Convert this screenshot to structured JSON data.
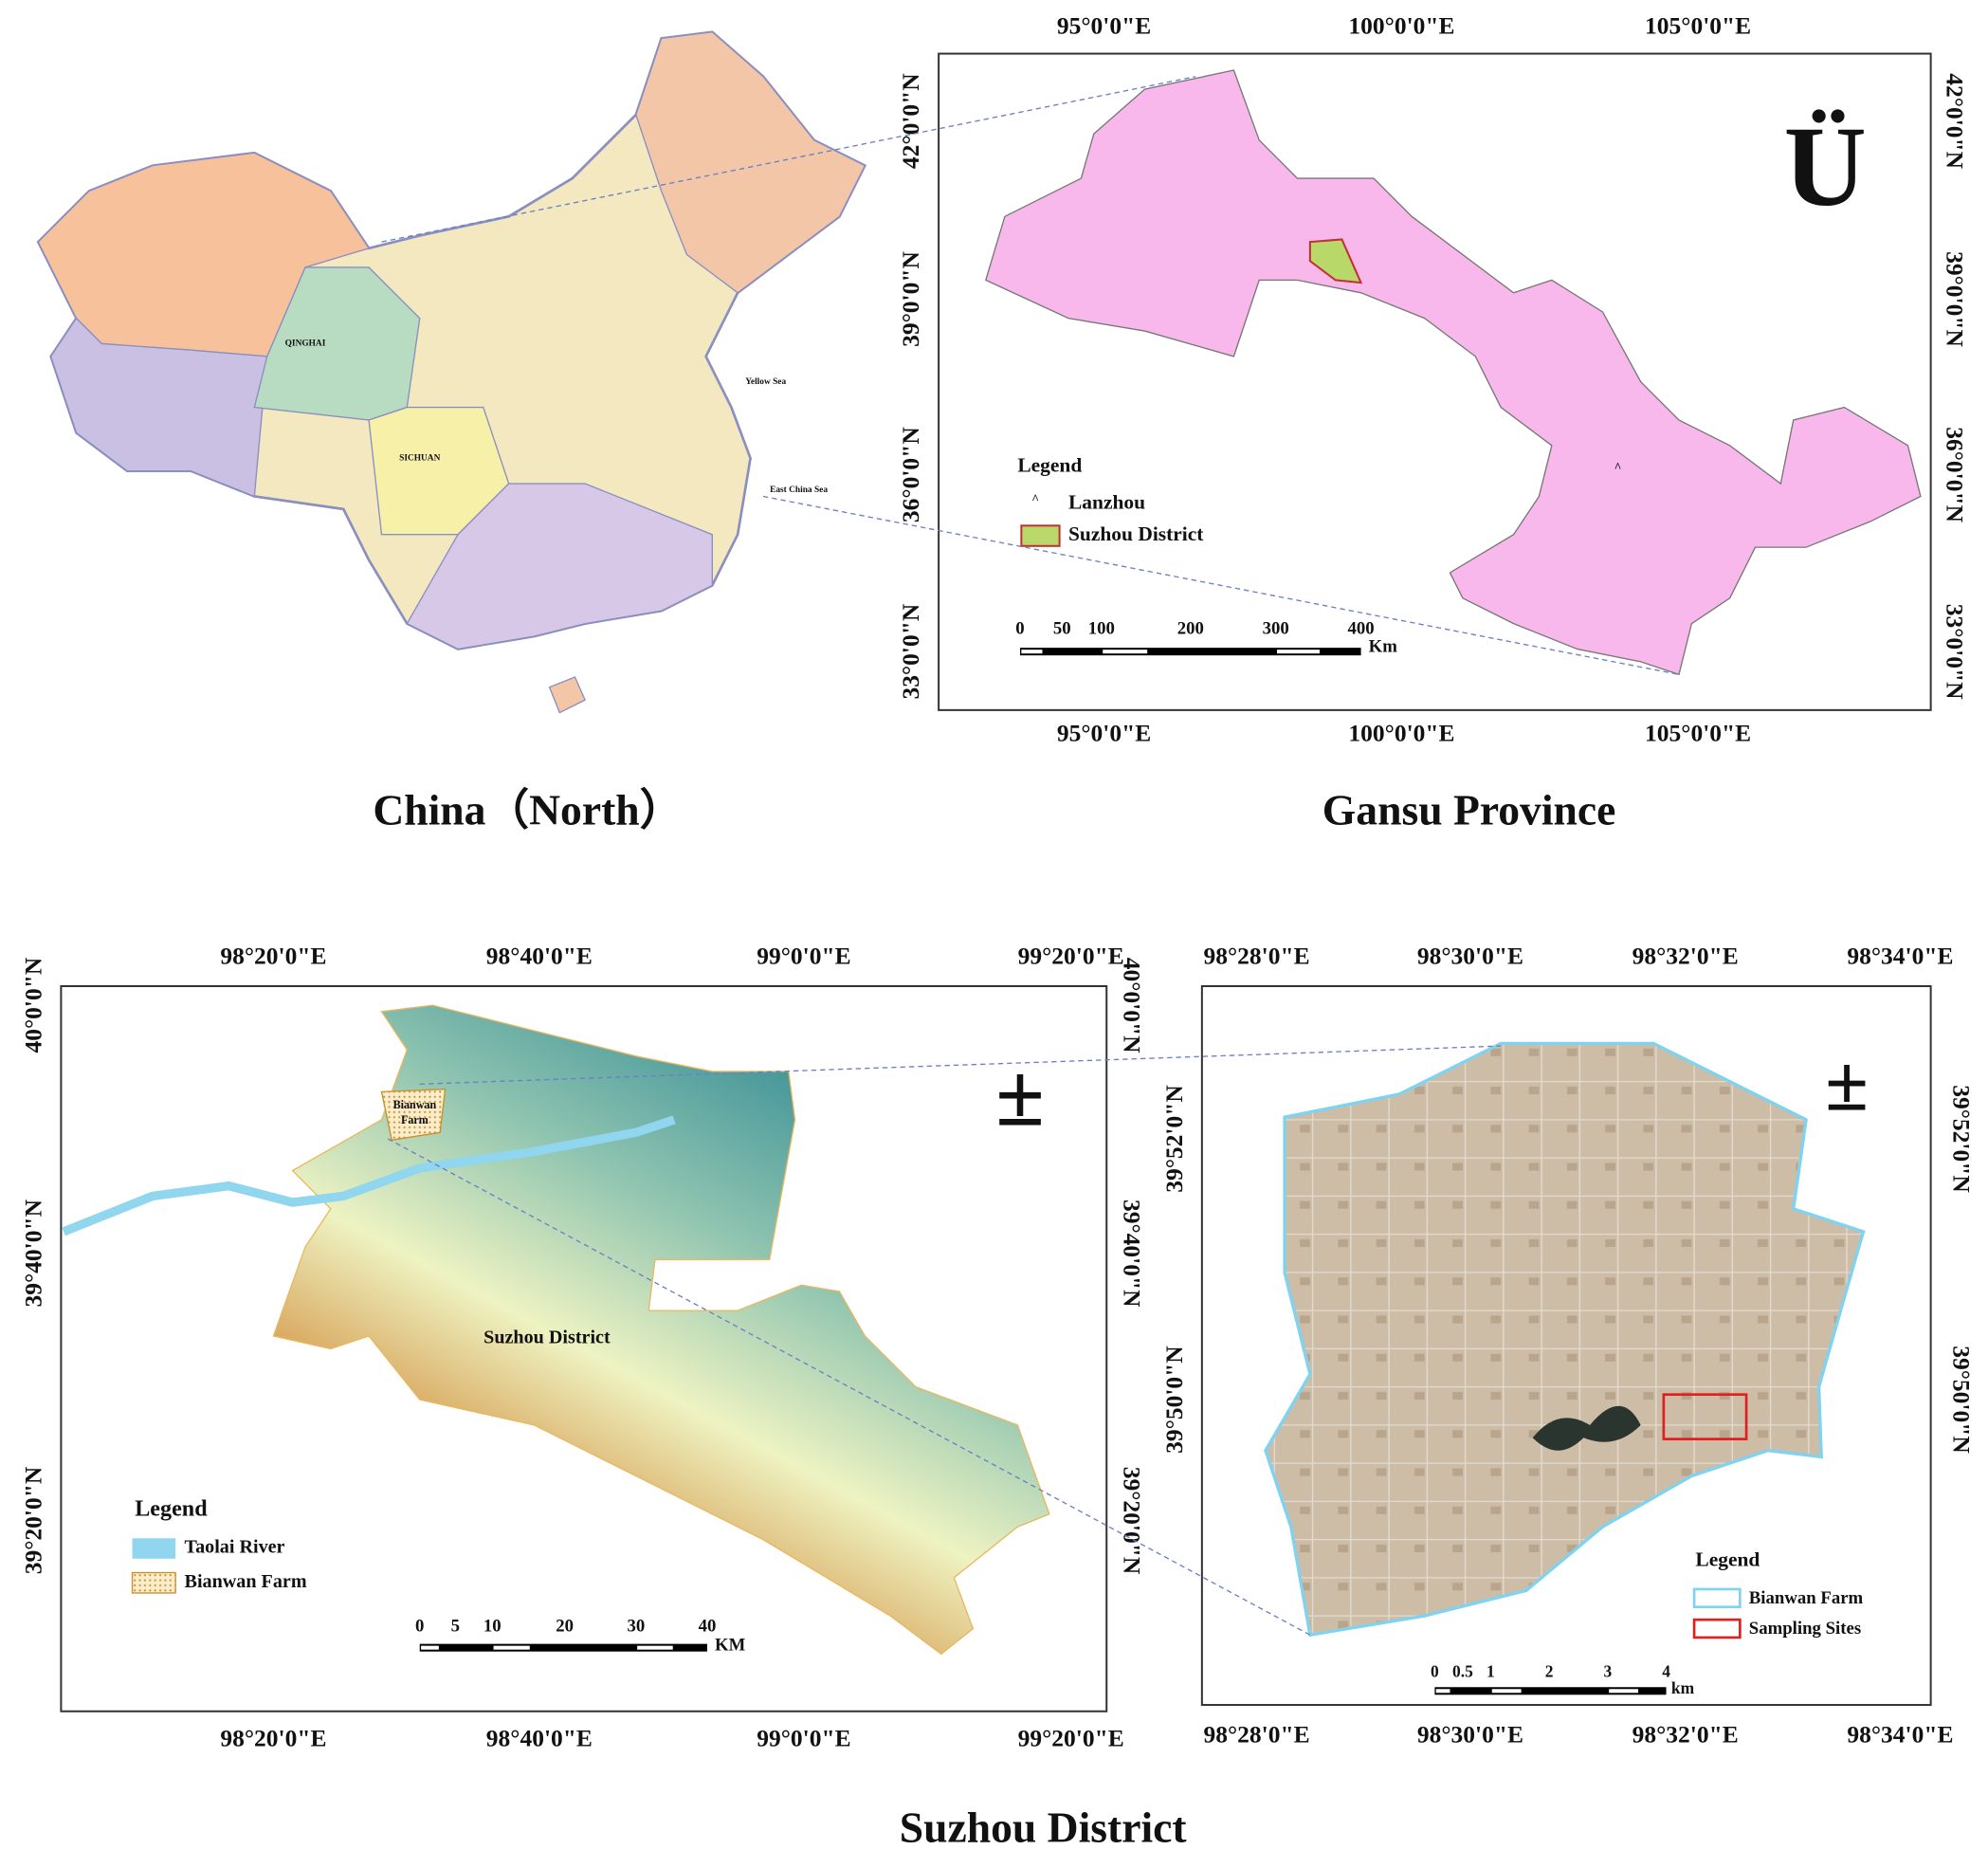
{
  "china_map": {
    "title": "China（North）",
    "labels": [
      "QINGHAI",
      "SICHUAN",
      "Yellow Sea",
      "East China Sea"
    ]
  },
  "gansu_map": {
    "title": "Gansu Province",
    "north_symbol": "Ü",
    "x_ticks": [
      "95°0'0\"E",
      "100°0'0\"E",
      "105°0'0\"E"
    ],
    "y_ticks": [
      "42°0'0\"N",
      "39°0'0\"N",
      "36°0'0\"N",
      "33°0'0\"N"
    ],
    "legend": {
      "title": "Legend",
      "items": [
        "Lanzhou",
        "Suzhou District"
      ]
    },
    "scale_bar": {
      "labels": [
        "0",
        "50",
        "100",
        "200",
        "300",
        "400"
      ],
      "unit": "Km"
    }
  },
  "suzhou_map": {
    "title": "Suzhou District",
    "north_symbol": "±",
    "x_ticks": [
      "98°20'0\"E",
      "98°40'0\"E",
      "99°0'0\"E",
      "99°20'0\"E"
    ],
    "y_ticks": [
      "40°0'0\"N",
      "39°40'0\"N",
      "39°20'0\"N"
    ],
    "labels": [
      "Bianwan",
      "Farm",
      "Suzhou District"
    ],
    "legend": {
      "title": "Legend",
      "items": [
        "Taolai River",
        "Bianwan Farm"
      ]
    },
    "scale_bar": {
      "labels": [
        "0",
        "5",
        "10",
        "20",
        "30",
        "40"
      ],
      "unit": "KM"
    }
  },
  "bianwan_map": {
    "north_symbol": "±",
    "x_ticks": [
      "98°28'0\"E",
      "98°30'0\"E",
      "98°32'0\"E",
      "98°34'0\"E"
    ],
    "y_ticks": [
      "39°52'0\"N",
      "39°50'0\"N"
    ],
    "legend": {
      "title": "Legend",
      "items": [
        "Bianwan Farm",
        "Sampling Sites"
      ]
    },
    "scale_bar": {
      "labels": [
        "0",
        "0.5",
        "1",
        "2",
        "3",
        "4"
      ],
      "unit": "km"
    }
  }
}
